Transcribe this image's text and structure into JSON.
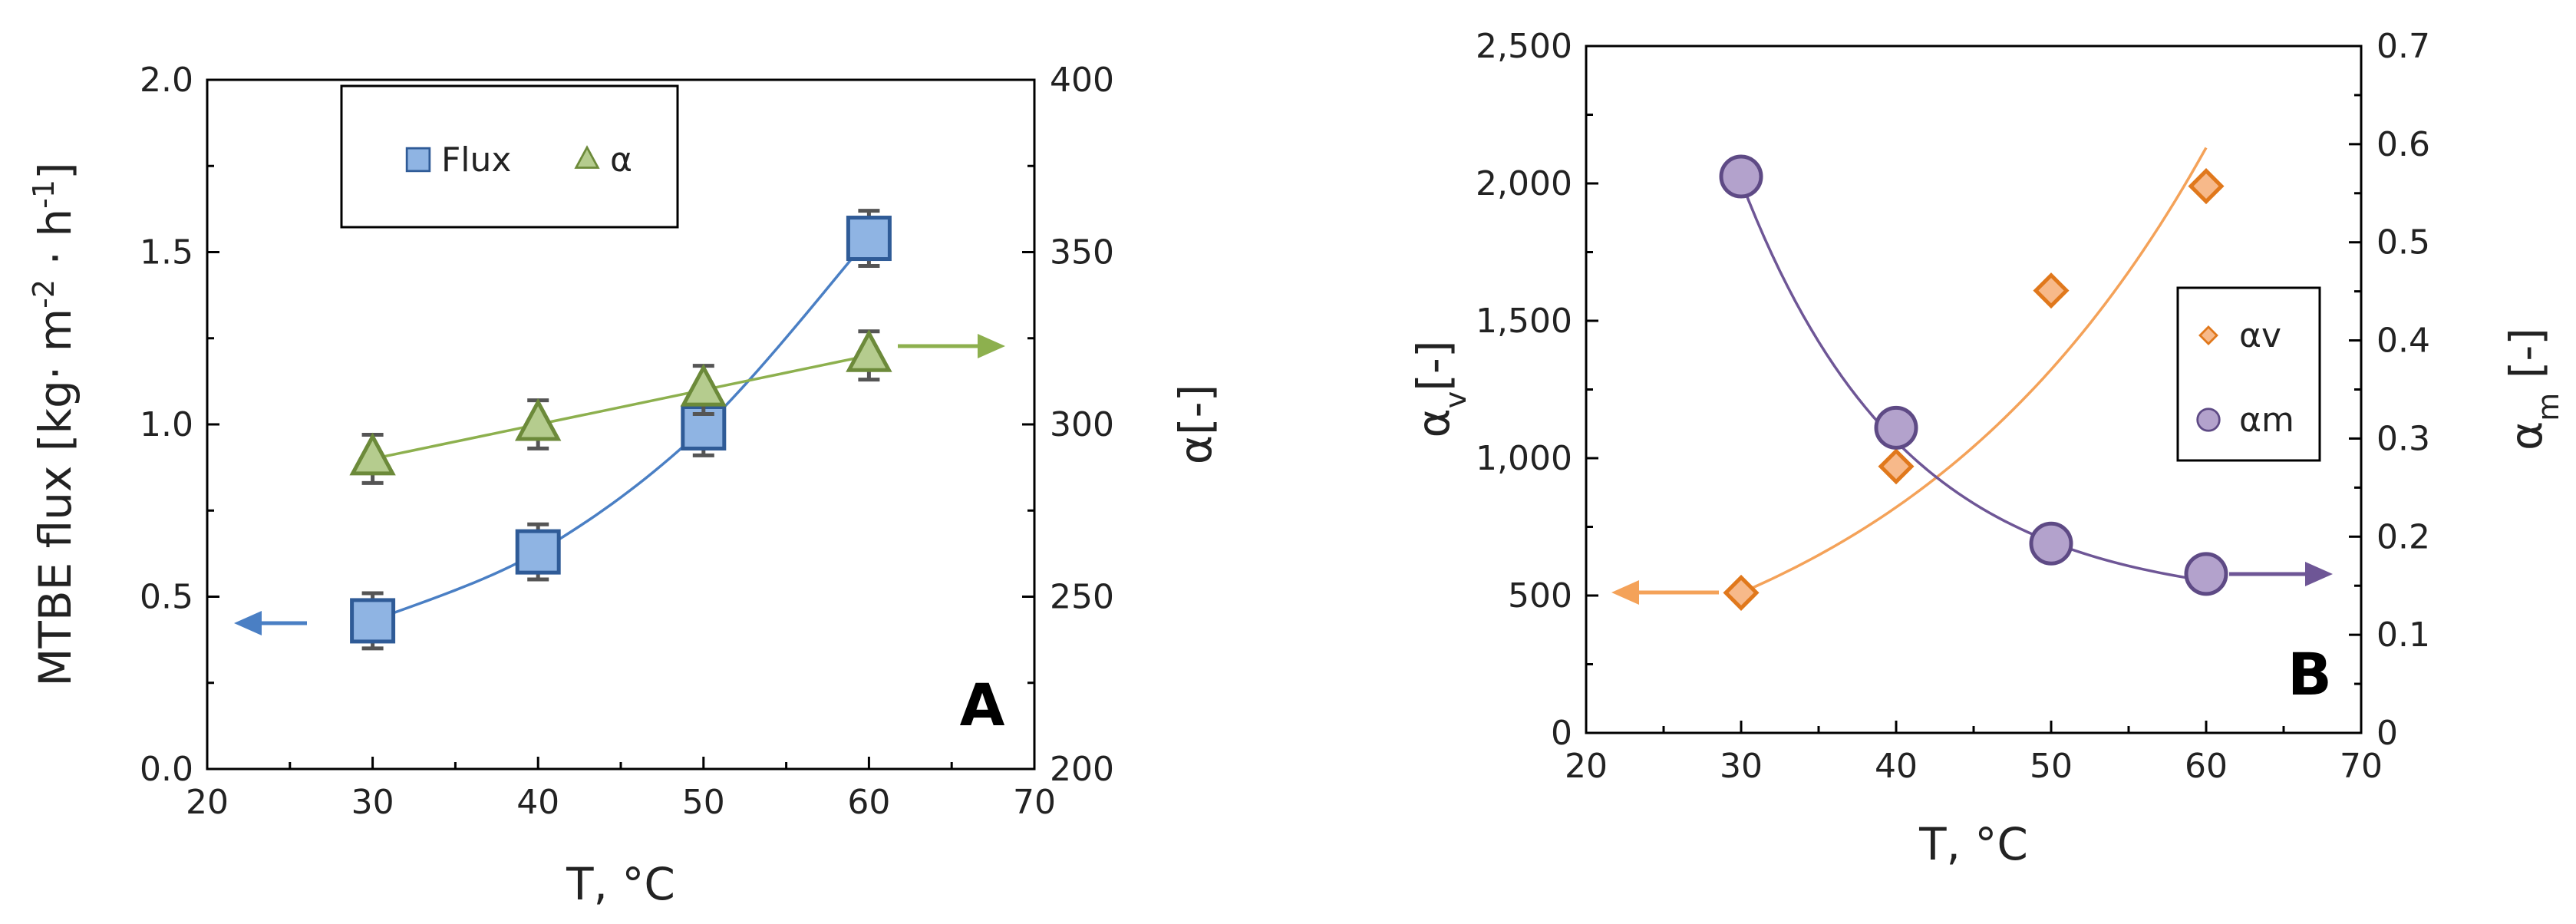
{
  "chart_data": [
    {
      "type": "scatter",
      "panel_label": "A",
      "xlabel": "T, °C",
      "xlim": [
        20,
        70
      ],
      "xticks": [
        20,
        30,
        40,
        50,
        60,
        70
      ],
      "y_left": {
        "label_parts": [
          "MTBE flux [kg· m",
          "-2",
          " · h",
          "-1",
          "]"
        ],
        "lim": [
          0,
          2
        ],
        "ticks": [
          "0.0",
          "0.5",
          "1.0",
          "1.5",
          "2.0"
        ],
        "tick_values": [
          0,
          0.5,
          1,
          1.5,
          2
        ]
      },
      "y_right": {
        "label": "α[-]",
        "lim": [
          200,
          400
        ],
        "ticks": [
          "200",
          "250",
          "300",
          "350",
          "400"
        ],
        "tick_values": [
          200,
          250,
          300,
          350,
          400
        ]
      },
      "legend_position": "top-left",
      "series": [
        {
          "name": "Flux",
          "axis": "left",
          "marker": "square",
          "fill": "#8fb4e3",
          "stroke": "#2f5b97",
          "line": "#4a7fc4",
          "x": [
            30,
            40,
            50,
            60
          ],
          "y": [
            0.43,
            0.63,
            0.99,
            1.54
          ],
          "err": [
            0.08,
            0.08,
            0.08,
            0.08
          ],
          "fit": [
            0.43,
            0.63,
            0.99,
            1.54
          ],
          "arrow": "left"
        },
        {
          "name": "α",
          "axis": "right",
          "marker": "triangle",
          "fill": "#b5cc8e",
          "stroke": "#6c8a3a",
          "line": "#8db04e",
          "x": [
            30,
            40,
            50,
            60
          ],
          "y": [
            290,
            300,
            310,
            320
          ],
          "err": [
            7,
            7,
            7,
            7
          ],
          "fit": [
            290,
            300,
            310,
            320
          ],
          "arrow": "right"
        }
      ]
    },
    {
      "type": "scatter",
      "panel_label": "B",
      "xlabel": "T, °C",
      "xlim": [
        20,
        70
      ],
      "xticks": [
        20,
        30,
        40,
        50,
        60,
        70
      ],
      "y_left": {
        "label_parts": [
          "α",
          "v",
          "[-]"
        ],
        "lim": [
          0,
          2500
        ],
        "ticks": [
          "0",
          "500",
          "1,000",
          "1,500",
          "2,000",
          "2,500"
        ],
        "tick_values": [
          0,
          500,
          1000,
          1500,
          2000,
          2500
        ]
      },
      "y_right": {
        "label_parts": [
          "α",
          "m",
          " [-]"
        ],
        "lim": [
          0,
          0.7
        ],
        "ticks": [
          "0",
          "0.1",
          "0.2",
          "0.3",
          "0.4",
          "0.5",
          "0.6",
          "0.7"
        ],
        "tick_values": [
          0,
          0.1,
          0.2,
          0.3,
          0.4,
          0.5,
          0.6,
          0.7
        ]
      },
      "legend_position": "right",
      "series": [
        {
          "name": "αv",
          "axis": "left",
          "marker": "diamond",
          "fill": "#f7b98a",
          "stroke": "#e0781c",
          "line": "#f4a259",
          "x": [
            30,
            40,
            50,
            60
          ],
          "y": [
            510,
            970,
            1610,
            1990
          ],
          "fit_x": [
            30,
            60
          ],
          "fit_model": "exponential",
          "fit": [
            510,
            2130
          ],
          "arrow": "left"
        },
        {
          "name": "αm",
          "axis": "right",
          "marker": "circle",
          "fill": "#b3a2cc",
          "stroke": "#5e4a85",
          "line": "#6e5696",
          "x": [
            30,
            40,
            50,
            60
          ],
          "y": [
            0.567,
            0.311,
            0.193,
            0.162
          ],
          "fit_x": [
            30,
            60
          ],
          "fit_model": "exp-decay",
          "fit_asymptote": 0.13,
          "fit": [
            0.562,
            0.155
          ],
          "arrow": "right"
        }
      ]
    }
  ]
}
